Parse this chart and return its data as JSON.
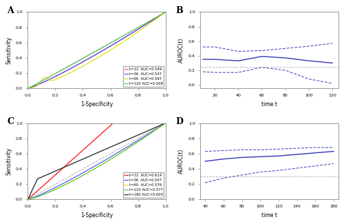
{
  "panel_A": {
    "title": "A",
    "xlabel": "1-Specificity",
    "ylabel": "Sensitivity",
    "diag_color": "#b0b0b0",
    "curves": [
      {
        "label": "t=12  AUC=0.549",
        "color": "#ff4444",
        "auc": 0.549,
        "bump": false
      },
      {
        "label": "t=36  AUC=0.547",
        "color": "#4444ff",
        "auc": 0.547,
        "bump": false
      },
      {
        "label": "t=60  AUC=0.597",
        "color": "#dddd00",
        "auc": 0.597,
        "bump": true
      },
      {
        "label": "t=120 AUC=0.508",
        "color": "#44cc44",
        "auc": 0.508,
        "bump": false
      }
    ],
    "xticks": [
      0.0,
      0.2,
      0.4,
      0.6,
      0.8,
      1.0
    ],
    "yticks": [
      0.0,
      0.2,
      0.4,
      0.6,
      0.8,
      1.0
    ],
    "xlim": [
      0,
      1
    ],
    "ylim": [
      0,
      1
    ]
  },
  "panel_B": {
    "title": "B",
    "xlabel": "time t",
    "ylabel": "AUROC(t)",
    "line_color": "#3333bb",
    "times": [
      10,
      20,
      40,
      60,
      80,
      100,
      120
    ],
    "auc_main": [
      0.35,
      0.35,
      0.33,
      0.39,
      0.37,
      0.33,
      0.3
    ],
    "auc_upper": [
      0.52,
      0.52,
      0.46,
      0.47,
      0.5,
      0.53,
      0.57
    ],
    "auc_lower": [
      0.18,
      0.17,
      0.17,
      0.24,
      0.2,
      0.08,
      0.02
    ],
    "ref_line": 0.25,
    "xticks": [
      20,
      40,
      60,
      80,
      100,
      120
    ],
    "yticks": [
      0.0,
      0.2,
      0.4,
      0.6,
      0.8,
      1.0
    ],
    "xlim": [
      8,
      125
    ],
    "ylim": [
      -0.05,
      1.0
    ]
  },
  "panel_C": {
    "title": "C",
    "xlabel": "1-Specificity",
    "ylabel": "Sensitivity",
    "diag_color": "#b0b0b0",
    "curves": [
      {
        "label": "t=12  AUC=0.614",
        "color": "#ff2222",
        "shape": "linear_plateau"
      },
      {
        "label": "t=36  AUC=0.547",
        "color": "#4444ff",
        "shape": "power",
        "auc": 0.547
      },
      {
        "label": "t=60  AUC=0.576",
        "color": "#dddd00",
        "shape": "power",
        "auc": 0.576
      },
      {
        "label": "t=120 AUC=0.577",
        "color": "#44cc44",
        "shape": "power",
        "auc": 0.577
      },
      {
        "label": "t=180 AUC=0.600",
        "color": "#333333",
        "shape": "steep_early"
      }
    ],
    "xticks": [
      0.0,
      0.2,
      0.4,
      0.6,
      0.8,
      1.0
    ],
    "yticks": [
      0.0,
      0.2,
      0.4,
      0.6,
      0.8,
      1.0
    ],
    "xlim": [
      0,
      1
    ],
    "ylim": [
      0,
      1
    ]
  },
  "panel_D": {
    "title": "D",
    "xlabel": "time t",
    "ylabel": "AUROC(t)",
    "line_color": "#3333bb",
    "times": [
      40,
      60,
      80,
      100,
      120,
      140,
      160,
      180
    ],
    "auc_main": [
      0.5,
      0.53,
      0.55,
      0.56,
      0.57,
      0.59,
      0.61,
      0.63
    ],
    "auc_upper": [
      0.63,
      0.64,
      0.65,
      0.65,
      0.66,
      0.67,
      0.68,
      0.68
    ],
    "auc_lower": [
      0.22,
      0.28,
      0.32,
      0.36,
      0.38,
      0.41,
      0.44,
      0.47
    ],
    "ref_line": 0.3,
    "xticks": [
      40,
      60,
      80,
      100,
      120,
      140,
      160,
      180
    ],
    "yticks": [
      0.0,
      0.2,
      0.4,
      0.6,
      0.8,
      1.0
    ],
    "xlim": [
      35,
      185
    ],
    "ylim": [
      0.1,
      1.0
    ]
  },
  "bg_color": "#ffffff",
  "axes_color": "#888888",
  "font_size": 5.5,
  "tick_font_size": 4.5,
  "legend_font_size": 3.8,
  "title_font_size": 9
}
